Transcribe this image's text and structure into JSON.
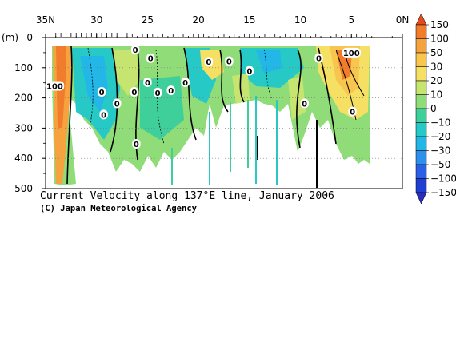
{
  "chart_data": {
    "type": "heatmap",
    "title": "Current Velocity along 137°E line, January 2006",
    "credit": "(C) Japan Meteorological Agency",
    "ylabel": "(m)",
    "x_ticks": [
      "35N",
      "30",
      "25",
      "20",
      "15",
      "10",
      "5",
      "0N"
    ],
    "x_tick_values": [
      35,
      30,
      25,
      20,
      15,
      10,
      5,
      0
    ],
    "xlim": [
      35,
      0
    ],
    "y_ticks": [
      "0",
      "100",
      "200",
      "300",
      "400",
      "500"
    ],
    "y_tick_values": [
      0,
      100,
      200,
      300,
      400,
      500
    ],
    "ylim": [
      0,
      500
    ],
    "grid": true,
    "colorbar": {
      "labels": [
        "150",
        "100",
        "50",
        "30",
        "20",
        "10",
        "0",
        "−10",
        "−20",
        "−30",
        "−50",
        "−100",
        "−150"
      ],
      "levels": [
        150,
        100,
        50,
        30,
        20,
        10,
        0,
        -10,
        -20,
        -30,
        -50,
        -100,
        -150
      ],
      "colors": [
        "#e34a1c",
        "#f07c2c",
        "#f6a23e",
        "#f8c64f",
        "#f5e064",
        "#c6e470",
        "#8fdc78",
        "#3fcf9a",
        "#27c9c7",
        "#22b7e6",
        "#2d90ee",
        "#2a5fe6",
        "#1f3fd2",
        "#2b2bc2"
      ]
    },
    "contour_labels": [
      {
        "text": "100",
        "lat": 34.1,
        "depth": 160
      },
      {
        "text": "100",
        "lat": 5.0,
        "depth": 50
      },
      {
        "text": "0",
        "lat": 26.2,
        "depth": 40
      },
      {
        "text": "0",
        "lat": 24.7,
        "depth": 68
      },
      {
        "text": "0",
        "lat": 19.0,
        "depth": 80
      },
      {
        "text": "0",
        "lat": 17.0,
        "depth": 78
      },
      {
        "text": "0",
        "lat": 15.0,
        "depth": 110
      },
      {
        "text": "0",
        "lat": 8.2,
        "depth": 68
      },
      {
        "text": "0",
        "lat": 29.5,
        "depth": 180
      },
      {
        "text": "0",
        "lat": 28.0,
        "depth": 218
      },
      {
        "text": "0",
        "lat": 26.3,
        "depth": 180
      },
      {
        "text": "0",
        "lat": 25.0,
        "depth": 148
      },
      {
        "text": "0",
        "lat": 24.0,
        "depth": 182
      },
      {
        "text": "0",
        "lat": 22.7,
        "depth": 175
      },
      {
        "text": "0",
        "lat": 21.3,
        "depth": 148
      },
      {
        "text": "0",
        "lat": 29.3,
        "depth": 255
      },
      {
        "text": "0",
        "lat": 26.1,
        "depth": 352
      },
      {
        "text": "0",
        "lat": 9.6,
        "depth": 218
      },
      {
        "text": "0",
        "lat": 4.9,
        "depth": 245
      }
    ]
  }
}
